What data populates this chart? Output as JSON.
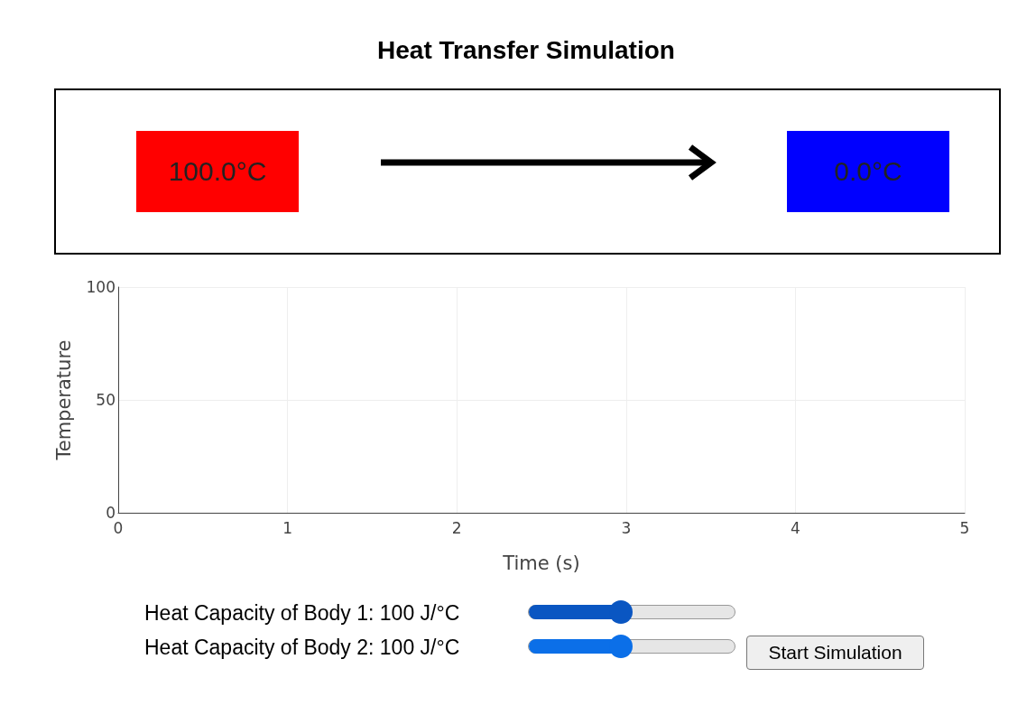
{
  "chart_data": [
    {
      "type": "other",
      "title": "Heat Transfer Simulation",
      "annotations": [
        "100.0°C",
        "0.0°C"
      ],
      "colors": [
        "#ff0000",
        "#0000ff"
      ]
    },
    {
      "type": "line",
      "xlabel": "Time (s)",
      "ylabel": "Temperature",
      "xlim": [
        0,
        5
      ],
      "xticks": [
        0,
        1,
        2,
        3,
        4,
        5
      ],
      "ylim": [
        0,
        100
      ],
      "yticks": [
        0,
        50,
        100
      ],
      "grid": true,
      "annotations": [
        "Heat Capacity of Body 1: 100 J/°C",
        "Heat Capacity of Body 2: 100 J/°C",
        "Start Simulation"
      ]
    }
  ]
}
